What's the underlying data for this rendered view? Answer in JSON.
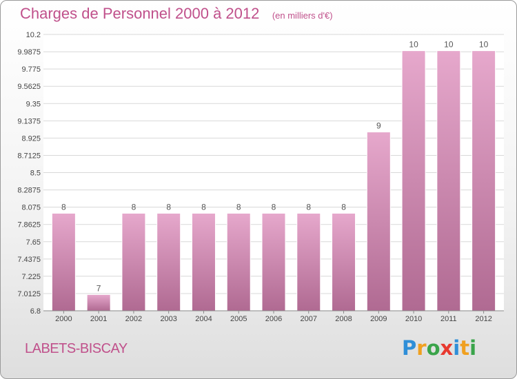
{
  "header": {
    "title": "Charges de Personnel 2000 à 2012",
    "subtitle": "(en milliers d'€)"
  },
  "footer": {
    "commune": "LABETS-BISCAY",
    "logo_letters": [
      {
        "char": "P",
        "color": "#2f8fd8"
      },
      {
        "char": "r",
        "color": "#f0a020"
      },
      {
        "char": "o",
        "color": "#3aa44a"
      },
      {
        "char": "x",
        "color": "#e8392f"
      },
      {
        "char": "i",
        "color": "#2f8fd8"
      },
      {
        "char": "t",
        "color": "#f0a020"
      },
      {
        "char": "i",
        "color": "#3aa44a"
      }
    ]
  },
  "chart_data": {
    "type": "bar",
    "categories": [
      "2000",
      "2001",
      "2002",
      "2003",
      "2004",
      "2005",
      "2006",
      "2007",
      "2008",
      "2009",
      "2010",
      "2011",
      "2012"
    ],
    "values": [
      8,
      7,
      8,
      8,
      8,
      8,
      8,
      8,
      8,
      9,
      10,
      10,
      10
    ],
    "data_labels": [
      "8",
      "7",
      "8",
      "8",
      "8",
      "8",
      "8",
      "8",
      "8",
      "9",
      "10",
      "10",
      "10"
    ],
    "ylim": [
      6.8,
      10.2
    ],
    "y_ticks": [
      6.8,
      7.0125,
      7.225,
      7.4375,
      7.65,
      7.8625,
      8.075,
      8.2875,
      8.5,
      8.7125,
      8.925,
      9.1375,
      9.35,
      9.5625,
      9.775,
      9.9875,
      10.2
    ],
    "y_tick_labels": [
      "6.8",
      "7.0125",
      "7.225",
      "7.4375",
      "7.65",
      "7.8625",
      "8.075",
      "8.2875",
      "8.5",
      "8.7125",
      "8.925",
      "9.1375",
      "9.35",
      "9.5625",
      "9.775",
      "9.9875",
      "10.2"
    ],
    "grid": true,
    "colors": {
      "bar_top": "#e6a8cc",
      "bar_bottom": "#b06a92",
      "bar_label": "#555555",
      "grid": "#d8d8d8",
      "accent": "#c0508b"
    }
  }
}
